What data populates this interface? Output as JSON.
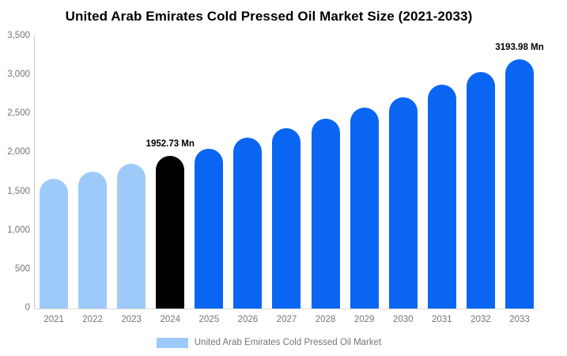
{
  "title": "United Arab Emirates Cold Pressed Oil Market Size (2021-2033)",
  "colors": {
    "historical_bar": "#9ECAFA",
    "current_year_bar": "#000000",
    "forecast_bar": "#0A66F2",
    "axis_line": "#CCCCCC",
    "text_gray": "#757575",
    "title_text": "#000000"
  },
  "legend": {
    "label": "United Arab Emirates Cold Pressed Oil Market",
    "swatch_color": "#9ECAFA"
  },
  "chart_data": {
    "type": "bar",
    "title": "United Arab Emirates Cold Pressed Oil Market Size (2021-2033)",
    "xlabel": "",
    "ylabel": "",
    "categories": [
      "2021",
      "2022",
      "2023",
      "2024",
      "2025",
      "2026",
      "2027",
      "2028",
      "2029",
      "2030",
      "2031",
      "2032",
      "2033"
    ],
    "values": [
      1655,
      1755,
      1850,
      1952.73,
      2050,
      2185,
      2305,
      2435,
      2575,
      2705,
      2865,
      3030,
      3193.98
    ],
    "bar_colors": [
      "#9ECAFA",
      "#9ECAFA",
      "#9ECAFA",
      "#000000",
      "#0A66F2",
      "#0A66F2",
      "#0A66F2",
      "#0A66F2",
      "#0A66F2",
      "#0A66F2",
      "#0A66F2",
      "#0A66F2",
      "#0A66F2"
    ],
    "unit": "Mn",
    "annotations": [
      {
        "index": 3,
        "text": "1952.73 Mn"
      },
      {
        "index": 12,
        "text": "3193.98 Mn"
      }
    ],
    "ylim": [
      0,
      3500
    ],
    "ytick_values": [
      0,
      500,
      1000,
      1500,
      2000,
      2500,
      3000,
      3500
    ],
    "ytick_labels": [
      "0",
      "500",
      "1,000",
      "1,500",
      "2,000",
      "2,500",
      "3,000",
      "3,500"
    ],
    "grid": false,
    "legend_position": "bottom",
    "legend_entries": [
      "United Arab Emirates Cold Pressed Oil Market"
    ]
  }
}
